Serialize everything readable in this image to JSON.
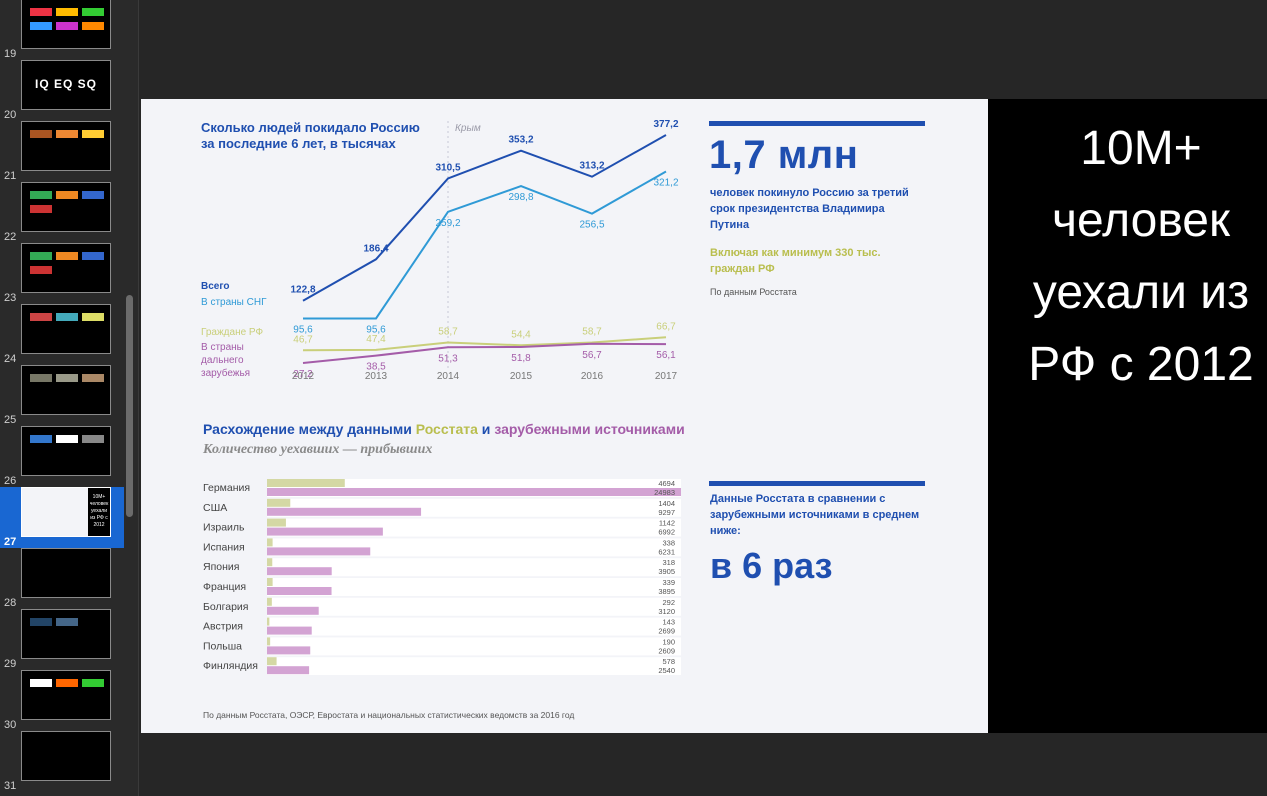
{
  "sidebar": {
    "slides": [
      {
        "number": "19",
        "title": ""
      },
      {
        "number": "20",
        "title": "IQ EQ SQ"
      },
      {
        "number": "21",
        "title": ""
      },
      {
        "number": "22",
        "title": ""
      },
      {
        "number": "23",
        "title": ""
      },
      {
        "number": "24",
        "title": ""
      },
      {
        "number": "25",
        "title": ""
      },
      {
        "number": "26",
        "title": ""
      },
      {
        "number": "27",
        "title": ""
      },
      {
        "number": "28",
        "title": ""
      },
      {
        "number": "29",
        "title": ""
      },
      {
        "number": "30",
        "title": ""
      },
      {
        "number": "31",
        "title": ""
      }
    ],
    "selected": "27"
  },
  "slide": {
    "overlay_text": "10M+ человек уехали из РФ с 2012",
    "line_chart_title": "Сколько людей покидало Россию за последние 6 лет, в тысячах",
    "crimea_label": "Крым",
    "big_number": "1,7 млн",
    "big_number_caption": "человек покинуло Россию за третий срок президентства Владимира Путина",
    "included_note": "Включая как минимум 330 тыс. граждан РФ",
    "source_note": "По данным Росстата",
    "bar_section_title_part1": "Расхождение между данными ",
    "bar_section_title_part2": "Росстата",
    "bar_section_title_part3": " и ",
    "bar_section_title_part4": "зарубежными источниками",
    "bar_section_subtitle": "Количество уехавших — прибывших",
    "comparison_caption": "Данные Росстата в сравнении с зарубежными источниками в среднем ниже:",
    "comparison_value": "в 6 раз",
    "footer_source": "По данным Росстата, ОЭСР, Евростата и национальных статистических ведомств за 2016 год"
  },
  "colors": {
    "navy": "#1f4fb0",
    "light_blue": "#2f9ad6",
    "olive": "#c9cf7a",
    "purple": "#a45ca8",
    "pink_bar": "#d3a3d3",
    "olive_bar": "#d4d8a4"
  },
  "chart_data": [
    {
      "type": "line",
      "title": "Сколько людей покидало Россию за последние 6 лет, в тысячах",
      "x": [
        "2012",
        "2013",
        "2014",
        "2015",
        "2016",
        "2017"
      ],
      "series": [
        {
          "name": "Всего",
          "values": [
            122.8,
            186.4,
            310.5,
            353.2,
            313.2,
            377.2
          ],
          "labels": [
            "122,8",
            "186,4",
            "310,5",
            "353,2",
            "313,2",
            "377,2"
          ]
        },
        {
          "name": "В страны СНГ",
          "values": [
            95.6,
            95.6,
            259.2,
            298.8,
            256.5,
            321.2
          ],
          "labels": [
            "95,6",
            "95,6",
            "259,2",
            "298,8",
            "256,5",
            "321,2"
          ]
        },
        {
          "name": "Граждане РФ",
          "values": [
            46.7,
            47.4,
            58.7,
            54.4,
            58.7,
            66.7
          ],
          "labels": [
            "46,7",
            "47,4",
            "58,7",
            "54,4",
            "58,7",
            "66,7"
          ]
        },
        {
          "name": "В страны дальнего зарубежья",
          "values": [
            27.2,
            38.5,
            51.3,
            51.8,
            56.7,
            56.1
          ],
          "labels": [
            "27,2",
            "38,5",
            "51,3",
            "51,8",
            "56,7",
            "56,1"
          ]
        }
      ]
    },
    {
      "type": "bar",
      "title": "Расхождение между данными Росстата и зарубежными источниками",
      "subtitle": "Количество уехавших — прибывших",
      "categories": [
        "Германия",
        "США",
        "Израиль",
        "Испания",
        "Япония",
        "Франция",
        "Болгария",
        "Австрия",
        "Польша",
        "Финляндия"
      ],
      "series": [
        {
          "name": "Росстат",
          "values": [
            4694,
            1404,
            1142,
            338,
            318,
            339,
            292,
            143,
            190,
            578
          ]
        },
        {
          "name": "Зарубежные источники",
          "values": [
            24983,
            9297,
            6992,
            6231,
            3905,
            3895,
            3120,
            2699,
            2609,
            2540
          ]
        }
      ]
    }
  ]
}
